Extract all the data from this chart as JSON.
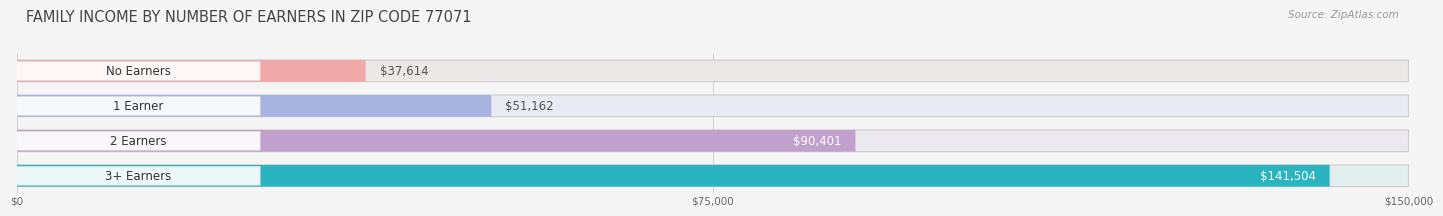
{
  "title": "FAMILY INCOME BY NUMBER OF EARNERS IN ZIP CODE 77071",
  "source": "Source: ZipAtlas.com",
  "categories": [
    "No Earners",
    "1 Earner",
    "2 Earners",
    "3+ Earners"
  ],
  "values": [
    37614,
    51162,
    90401,
    141504
  ],
  "bar_colors": [
    "#f0a8a8",
    "#a8b4e0",
    "#c0a0cc",
    "#2ab4c0"
  ],
  "bar_bg_colors": [
    "#ede8e8",
    "#e8eaf4",
    "#ebe8f0",
    "#e0eeee"
  ],
  "label_bg_colors": [
    "#f8f0f0",
    "#f0f2fa",
    "#f0eef8",
    "#e8f8f8"
  ],
  "value_inside": [
    false,
    false,
    true,
    true
  ],
  "value_colors_inside": [
    "#555555",
    "#555555",
    "#ffffff",
    "#ffffff"
  ],
  "xmax": 150000,
  "xticks": [
    0,
    75000,
    150000
  ],
  "xtick_labels": [
    "$0",
    "$75,000",
    "$150,000"
  ],
  "bg_color": "#f5f5f5",
  "title_color": "#444444",
  "source_color": "#999999",
  "title_fontsize": 10.5,
  "source_fontsize": 7.5,
  "label_fontsize": 8.5,
  "value_fontsize": 8.5,
  "bar_height": 0.62,
  "bar_gap": 0.38
}
